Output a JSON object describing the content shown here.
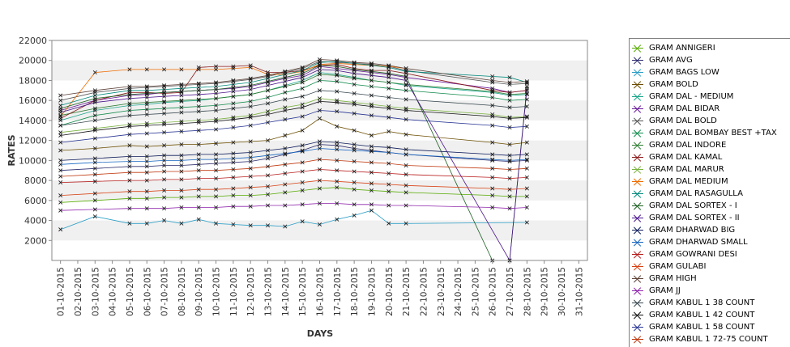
{
  "chart_data": {
    "type": "line",
    "xlabel": "DAYS",
    "ylabel": "RATES",
    "ylim": [
      0,
      22000
    ],
    "y_ticks": [
      2000,
      4000,
      6000,
      8000,
      10000,
      12000,
      14000,
      16000,
      18000,
      20000,
      22000
    ],
    "categories": [
      "01-10-2015",
      "02-10-2015",
      "03-10-2015",
      "04-10-2015",
      "05-10-2015",
      "06-10-2015",
      "07-10-2015",
      "08-10-2015",
      "09-10-2015",
      "10-10-2015",
      "11-10-2015",
      "12-10-2015",
      "13-10-2015",
      "14-10-2015",
      "15-10-2015",
      "16-10-2015",
      "17-10-2015",
      "18-10-2015",
      "19-10-2015",
      "20-10-2015",
      "21-10-2015",
      "22-10-2015",
      "23-10-2015",
      "24-10-2015",
      "25-10-2015",
      "26-10-2015",
      "27-10-2015",
      "28-10-2015",
      "29-10-2015",
      "30-10-2015",
      "31-10-2015"
    ],
    "grid": "alternating horizontal bands",
    "legend_position": "right",
    "series": [
      {
        "name": "GRAM ANNIGERI",
        "color": "#55aa00",
        "values": [
          5800,
          null,
          6000,
          null,
          6200,
          6200,
          6300,
          6300,
          6400,
          6400,
          6500,
          6500,
          6600,
          6800,
          7000,
          7200,
          7300,
          7100,
          7000,
          6900,
          6800,
          null,
          null,
          null,
          null,
          6500,
          6400,
          6400,
          null,
          null,
          null
        ]
      },
      {
        "name": "GRAM AVG",
        "color": "#2b2b6e",
        "values": [
          9000,
          null,
          9200,
          null,
          9400,
          9400,
          9500,
          9500,
          9600,
          9700,
          9800,
          9900,
          10200,
          10600,
          11000,
          11600,
          11500,
          11200,
          11000,
          10800,
          10600,
          null,
          null,
          null,
          null,
          10000,
          9900,
          10000,
          null,
          null,
          null
        ]
      },
      {
        "name": "GRAM BAGS LOW",
        "color": "#2a9ec6",
        "values": [
          3100,
          null,
          4400,
          null,
          3700,
          3700,
          4000,
          3700,
          4100,
          3700,
          3600,
          3500,
          3500,
          3400,
          3900,
          3600,
          4100,
          4500,
          5000,
          3700,
          3700,
          null,
          null,
          null,
          null,
          null,
          null,
          3800,
          null,
          null,
          null
        ]
      },
      {
        "name": "GRAM BOLD",
        "color": "#6b4e00",
        "values": [
          11000,
          null,
          11200,
          null,
          11500,
          11400,
          11500,
          11600,
          11600,
          11700,
          11800,
          11900,
          12000,
          12500,
          13000,
          14200,
          13400,
          13000,
          12500,
          12900,
          12600,
          null,
          null,
          null,
          null,
          11800,
          11600,
          11800,
          null,
          null,
          null
        ]
      },
      {
        "name": "GRAM DAL - MEDIUM",
        "color": "#1aa58a",
        "values": [
          14000,
          null,
          15000,
          null,
          15500,
          15600,
          15800,
          15900,
          16000,
          16200,
          16400,
          16600,
          17000,
          17500,
          18000,
          18800,
          18600,
          18300,
          18000,
          17800,
          17500,
          null,
          null,
          null,
          null,
          16800,
          16500,
          16600,
          null,
          null,
          null
        ]
      },
      {
        "name": "GRAM DAL BIDAR",
        "color": "#6a1b9a",
        "values": [
          15000,
          null,
          16000,
          null,
          16500,
          16600,
          16800,
          16900,
          17000,
          17100,
          17200,
          17400,
          17800,
          18200,
          18500,
          19400,
          19200,
          19000,
          18800,
          18600,
          18300,
          null,
          null,
          null,
          null,
          17200,
          16800,
          17000,
          null,
          null,
          null
        ]
      },
      {
        "name": "GRAM DAL BOLD",
        "color": "#555555",
        "values": [
          16000,
          null,
          16800,
          null,
          17200,
          17300,
          17400,
          17500,
          17600,
          17700,
          17900,
          18100,
          18400,
          18800,
          19200,
          19900,
          19800,
          19700,
          19600,
          19400,
          19000,
          null,
          null,
          null,
          null,
          17800,
          17600,
          17700,
          null,
          null,
          null
        ]
      },
      {
        "name": "GRAM DAL BOMBAY BEST +TAX",
        "color": "#0f8a4a",
        "values": [
          13500,
          null,
          14500,
          null,
          15000,
          15100,
          15200,
          15300,
          15400,
          15500,
          15700,
          15900,
          16300,
          16800,
          17200,
          18000,
          17900,
          17600,
          17400,
          17200,
          17000,
          null,
          null,
          null,
          null,
          16300,
          16000,
          16100,
          null,
          null,
          null
        ]
      },
      {
        "name": "GRAM DAL INDORE",
        "color": "#2e7d32",
        "values": [
          14500,
          null,
          15200,
          null,
          15700,
          15800,
          15900,
          16000,
          16100,
          16200,
          16400,
          16600,
          17000,
          17400,
          17800,
          18600,
          18500,
          18200,
          18000,
          17800,
          17600,
          null,
          null,
          null,
          null,
          16900,
          16600,
          16700,
          null,
          null,
          null
        ]
      },
      {
        "name": "GRAM DAL KAMAL",
        "color": "#8b1a1a",
        "values": [
          14200,
          null,
          16000,
          null,
          16800,
          16800,
          16700,
          16800,
          19300,
          19400,
          19400,
          19500,
          18800,
          18800,
          19000,
          19500,
          19600,
          19200,
          19000,
          19000,
          18700,
          null,
          null,
          null,
          null,
          17000,
          16800,
          17000,
          null,
          null,
          null
        ]
      },
      {
        "name": "GRAM DAL MARUR",
        "color": "#7cb342",
        "values": [
          12800,
          null,
          13200,
          null,
          13600,
          13700,
          13800,
          13900,
          14000,
          14100,
          14300,
          14500,
          14900,
          15300,
          15600,
          16200,
          16000,
          15800,
          15600,
          15400,
          15200,
          null,
          null,
          null,
          null,
          14600,
          14300,
          14400,
          null,
          null,
          null
        ]
      },
      {
        "name": "GRAM DAL MEDIUM",
        "color": "#ef6c00",
        "values": [
          14400,
          null,
          18800,
          null,
          19100,
          19100,
          19100,
          19100,
          19100,
          19100,
          19200,
          19300,
          18600,
          18600,
          18900,
          19600,
          19700,
          19600,
          19500,
          19400,
          19200,
          null,
          null,
          null,
          null,
          null,
          null,
          null,
          null,
          null,
          null
        ]
      },
      {
        "name": "GRAM DAL RASAGULLA",
        "color": "#00897b",
        "values": [
          15500,
          null,
          16500,
          null,
          17000,
          17000,
          17100,
          17200,
          17300,
          17400,
          17600,
          17800,
          18200,
          18600,
          19000,
          19800,
          19900,
          19700,
          19500,
          19300,
          18900,
          null,
          null,
          null,
          null,
          18400,
          18300,
          17800,
          null,
          null,
          null
        ]
      },
      {
        "name": "GRAM DAL SORTEX - I",
        "color": "#1b5e20",
        "values": [
          15200,
          null,
          16200,
          null,
          16600,
          16700,
          16800,
          16900,
          17000,
          17100,
          17300,
          17500,
          17900,
          18300,
          18700,
          19500,
          19400,
          19100,
          18900,
          18700,
          18400,
          null,
          null,
          null,
          null,
          0,
          0,
          17400,
          null,
          null,
          null
        ]
      },
      {
        "name": "GRAM DAL SORTEX - II",
        "color": "#4a148c",
        "values": [
          14800,
          null,
          15800,
          null,
          16200,
          16300,
          16400,
          16500,
          16600,
          16700,
          16900,
          17100,
          17500,
          17900,
          18300,
          19100,
          19000,
          18700,
          18500,
          18300,
          18000,
          null,
          null,
          null,
          null,
          null,
          0,
          17200,
          null,
          null,
          null
        ]
      },
      {
        "name": "GRAM DHARWAD BIG",
        "color": "#0d1b5a",
        "values": [
          10000,
          null,
          10200,
          null,
          10400,
          10400,
          10500,
          10500,
          10600,
          10600,
          10700,
          10800,
          11000,
          11200,
          11500,
          11900,
          11800,
          11600,
          11400,
          11300,
          11100,
          null,
          null,
          null,
          null,
          10600,
          10500,
          10600,
          null,
          null,
          null
        ]
      },
      {
        "name": "GRAM DHARWAD SMALL",
        "color": "#1565c0",
        "values": [
          9600,
          null,
          9800,
          null,
          9900,
          9900,
          10000,
          10000,
          10100,
          10100,
          10200,
          10300,
          10500,
          10700,
          10900,
          11200,
          11100,
          11000,
          10900,
          10800,
          10600,
          null,
          null,
          null,
          null,
          10100,
          10000,
          10100,
          null,
          null,
          null
        ]
      },
      {
        "name": "GRAM GOWRANI DESI",
        "color": "#b71c1c",
        "values": [
          7800,
          null,
          7900,
          null,
          8000,
          8000,
          8100,
          8100,
          8200,
          8200,
          8300,
          8400,
          8500,
          8700,
          8900,
          9100,
          9000,
          8900,
          8800,
          8700,
          8600,
          null,
          null,
          null,
          null,
          8300,
          8200,
          8300,
          null,
          null,
          null
        ]
      },
      {
        "name": "GRAM GULABI",
        "color": "#d84315",
        "values": [
          6500,
          null,
          6700,
          null,
          6900,
          6900,
          7000,
          7000,
          7100,
          7100,
          7200,
          7300,
          7400,
          7600,
          7800,
          8000,
          7900,
          7800,
          7700,
          7600,
          7500,
          null,
          null,
          null,
          null,
          7200,
          7100,
          7200,
          null,
          null,
          null
        ]
      },
      {
        "name": "GRAM HIGH",
        "color": "#5d4037",
        "values": [
          16500,
          null,
          17000,
          null,
          17400,
          17400,
          17500,
          17600,
          17700,
          17800,
          18000,
          18200,
          18500,
          18900,
          19300,
          20100,
          20000,
          19800,
          19700,
          19500,
          19200,
          null,
          null,
          null,
          null,
          18000,
          17800,
          17900,
          null,
          null,
          null
        ]
      },
      {
        "name": "GRAM JJ",
        "color": "#8e24aa",
        "values": [
          5000,
          null,
          5100,
          null,
          5200,
          5200,
          5200,
          5300,
          5300,
          5300,
          5400,
          5400,
          5500,
          5500,
          5600,
          5700,
          5700,
          5600,
          5600,
          5500,
          5500,
          null,
          null,
          null,
          null,
          5300,
          5200,
          5300,
          null,
          null,
          null
        ]
      },
      {
        "name": "GRAM KABUL 1 38 COUNT",
        "color": "#37474f",
        "values": [
          13500,
          null,
          14000,
          null,
          14500,
          14600,
          14700,
          14800,
          14900,
          15000,
          15200,
          15400,
          15700,
          16100,
          16400,
          17000,
          16900,
          16700,
          16500,
          16300,
          16100,
          null,
          null,
          null,
          null,
          15500,
          15300,
          15400,
          null,
          null,
          null
        ]
      },
      {
        "name": "GRAM KABUL 1 42 COUNT",
        "color": "#111111",
        "values": [
          12500,
          null,
          13000,
          null,
          13400,
          13500,
          13600,
          13700,
          13800,
          13900,
          14100,
          14300,
          14600,
          15000,
          15300,
          15900,
          15800,
          15600,
          15400,
          15200,
          15000,
          null,
          null,
          null,
          null,
          14400,
          14200,
          14300,
          null,
          null,
          null
        ]
      },
      {
        "name": "GRAM KABUL 1 58 COUNT",
        "color": "#283593",
        "values": [
          11800,
          null,
          12200,
          null,
          12600,
          12700,
          12800,
          12900,
          13000,
          13100,
          13300,
          13500,
          13800,
          14100,
          14400,
          15000,
          14900,
          14700,
          14500,
          14300,
          14100,
          null,
          null,
          null,
          null,
          13500,
          13300,
          13400,
          null,
          null,
          null
        ]
      },
      {
        "name": "GRAM KABUL 1 72-75 COUNT",
        "color": "#bf360c",
        "values": [
          8400,
          null,
          8600,
          null,
          8800,
          8800,
          8900,
          8900,
          9000,
          9000,
          9100,
          9200,
          9400,
          9600,
          9800,
          10100,
          10000,
          9900,
          9800,
          9700,
          9500,
          null,
          null,
          null,
          null,
          9200,
          9100,
          9200,
          null,
          null,
          null
        ]
      }
    ]
  }
}
